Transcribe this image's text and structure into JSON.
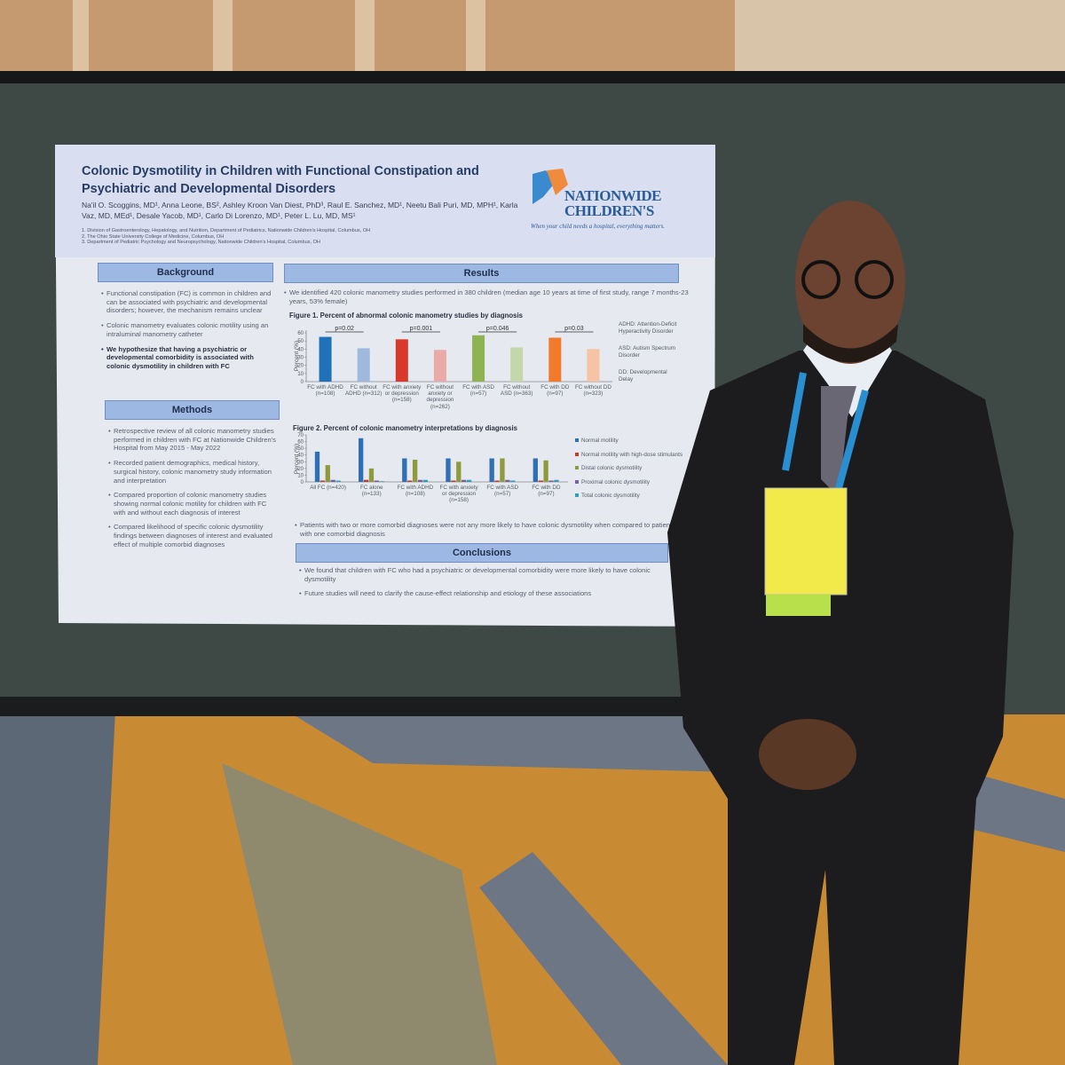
{
  "poster": {
    "title": "Colonic Dysmotility in Children with Functional Constipation and Psychiatric and Developmental Disorders",
    "authors": "Na'il O. Scoggins, MD¹, Anna Leone, BS², Ashley Kroon Van Diest, PhD³, Raul E. Sanchez, MD¹, Neetu Bali Puri, MD, MPH¹, Karla Vaz, MD, MEd¹, Desale Yacob, MD¹, Carlo Di Lorenzo, MD¹, Peter L. Lu, MD, MS¹",
    "affiliations": [
      "1. Division of Gastroenterology, Hepatology, and Nutrition, Department of Pediatrics, Nationwide Children's Hospital, Columbus, OH",
      "2. The Ohio State University College of Medicine, Columbus, OH",
      "3. Department of Pediatric Psychology and Neuropsychology, Nationwide Children's Hospital, Columbus, OH"
    ],
    "logo": {
      "name": "NATIONWIDE CHILDREN'S",
      "tagline": "When your child needs a hospital, everything matters."
    },
    "background": {
      "heading": "Background",
      "bullets": [
        "Functional constipation (FC) is common in children and can be associated with psychiatric and developmental disorders; however, the mechanism remains unclear",
        "Colonic manometry evaluates colonic motility using an intraluminal manometry catheter",
        "We hypothesize that having a psychiatric or developmental comorbidity is associated with colonic dysmotility in children with FC"
      ]
    },
    "methods": {
      "heading": "Methods",
      "bullets": [
        "Retrospective review of all colonic manometry studies performed in children with FC at Nationwide Children's Hospital from May 2015 - May 2022",
        "Recorded patient demographics, medical history, surgical history, colonic manometry study information and interpretation",
        "Compared proportion of colonic manometry studies showing normal colonic motility for children with FC with and without each diagnosis of interest",
        "Compared likelihood of specific colonic dysmotility findings between diagnoses of interest and evaluated effect of multiple comorbid diagnoses"
      ]
    },
    "results": {
      "heading": "Results",
      "intro": "We identified 420 colonic manometry studies performed in 380 children (median age 10 years at time of first study, range 7 months-23 years, 53% female)",
      "figure1": {
        "type": "bar",
        "title": "Figure 1. Percent of abnormal colonic manometry studies by diagnosis",
        "ylabel": "Percent (%)",
        "categories": [
          "FC with ADHD (n=108)",
          "FC without ADHD (n=312)",
          "FC with anxiety or depression (n=158)",
          "FC without anxiety or depression (n=262)",
          "FC with ASD (n=57)",
          "FC without ASD (n=363)",
          "FC with DD (n=97)",
          "FC without DD (n=323)"
        ],
        "values": [
          55,
          41,
          52,
          39,
          57,
          42,
          54,
          40
        ],
        "colors": [
          "#1f72b8",
          "#9fb9dd",
          "#d8392a",
          "#eaaba7",
          "#8eb352",
          "#c4d7a8",
          "#f27b2b",
          "#f6c4a3"
        ],
        "p_values": [
          "p=0.02",
          "p=0.001",
          "p=0.046",
          "p=0.03"
        ],
        "ylim": [
          0,
          60
        ],
        "yticks": [
          0,
          10,
          20,
          30,
          40,
          50,
          60
        ]
      },
      "definitions": [
        "ADHD: Attention-Deficit Hyperactivity Disorder",
        "ASD: Autism Spectrum Disorder",
        "DD: Developmental Delay"
      ],
      "figure2": {
        "type": "bar",
        "title": "Figure 2. Percent of colonic manometry interpretations by diagnosis",
        "ylabel": "Percent (%)",
        "categories": [
          "All FC (n=420)",
          "FC alone (n=133)",
          "FC with ADHD (n=108)",
          "FC with anxiety or depression (n=158)",
          "FC with ASD (n=57)",
          "FC with DD (n=97)"
        ],
        "series": [
          {
            "name": "Normal motility",
            "color": "#2f6fb3",
            "values": [
              45,
              65,
              35,
              35,
              35,
              35
            ]
          },
          {
            "name": "Normal motility with high-dose stimulants",
            "color": "#c23b2e",
            "values": [
              2,
              3,
              2,
              2,
              2,
              2
            ]
          },
          {
            "name": "Distal colonic dysmotility",
            "color": "#8f9a3c",
            "values": [
              25,
              20,
              33,
              30,
              35,
              32
            ]
          },
          {
            "name": "Proximal colonic dysmotility",
            "color": "#7b5ea9",
            "values": [
              3,
              2,
              3,
              3,
              3,
              2
            ]
          },
          {
            "name": "Total colonic dysmotility",
            "color": "#2aa1b6",
            "values": [
              2,
              1,
              3,
              3,
              2,
              3
            ]
          }
        ],
        "ylim": [
          0,
          70
        ],
        "yticks": [
          0,
          10,
          20,
          30,
          40,
          50,
          60,
          70
        ]
      },
      "note": "Patients with two or more comorbid diagnoses were not any more likely to have colonic dysmotility when compared to patients with one comorbid diagnosis"
    },
    "conclusions": {
      "heading": "Conclusions",
      "bullets": [
        "We found that children with FC who had a psychiatric or developmental comorbidity were more likely to have colonic dysmotility",
        "Future studies will need to clarify the cause-effect relationship and etiology of these associations"
      ]
    }
  }
}
